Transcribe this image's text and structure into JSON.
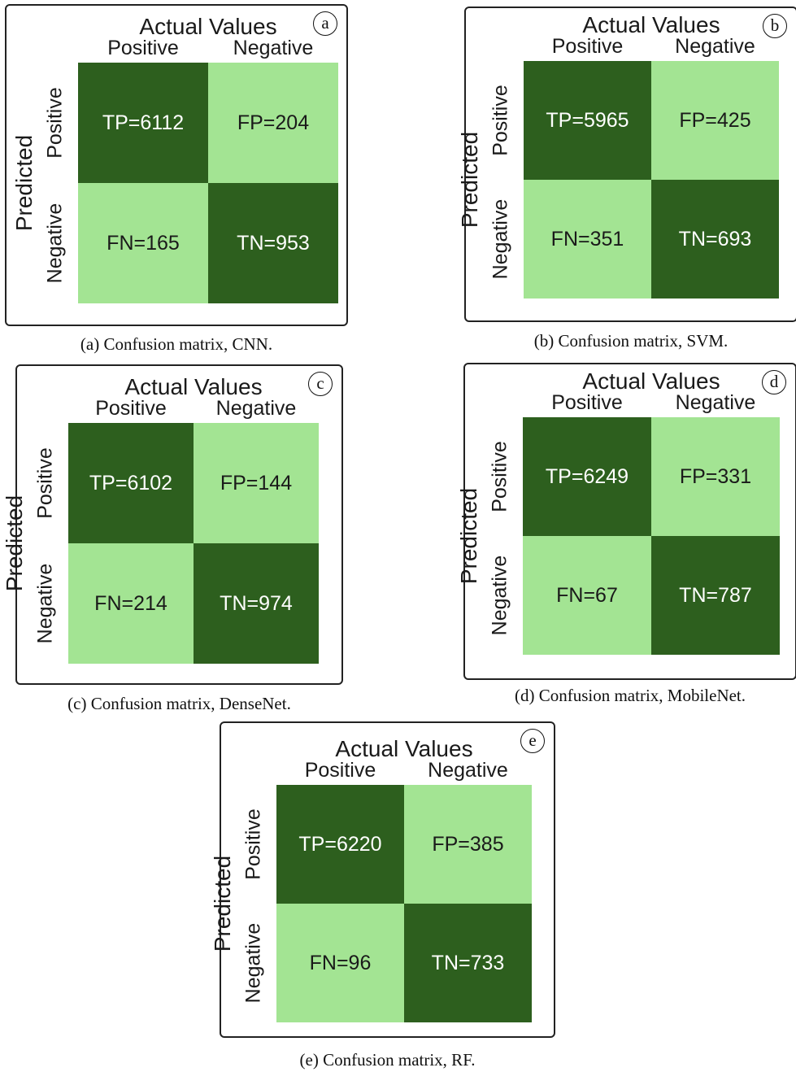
{
  "colors": {
    "dark_cell": "#2d5f1e",
    "light_cell": "#a3e493",
    "dark_text": "#ffffff",
    "light_text": "#1a1a1a"
  },
  "chart_data": [
    {
      "type": "heatmap",
      "panel_label": "a",
      "caption": "(a) Confusion matrix, CNN.",
      "title": "Actual Values",
      "ylabel": "Predicted",
      "columns": [
        "Positive",
        "Negative"
      ],
      "rows": [
        "Positive",
        "Negative"
      ],
      "cells": [
        [
          "TP=6112",
          "FP=204"
        ],
        [
          "FN=165",
          "TN=953"
        ]
      ],
      "values": [
        [
          6112,
          204
        ],
        [
          165,
          953
        ]
      ]
    },
    {
      "type": "heatmap",
      "panel_label": "b",
      "caption": "(b) Confusion matrix, SVM.",
      "title": "Actual Values",
      "ylabel": "Predicted",
      "columns": [
        "Positive",
        "Negative"
      ],
      "rows": [
        "Positive",
        "Negative"
      ],
      "cells": [
        [
          "TP=5965",
          "FP=425"
        ],
        [
          "FN=351",
          "TN=693"
        ]
      ],
      "values": [
        [
          5965,
          425
        ],
        [
          351,
          693
        ]
      ]
    },
    {
      "type": "heatmap",
      "panel_label": "c",
      "caption": "(c) Confusion matrix, DenseNet.",
      "title": "Actual Values",
      "ylabel": "Predicted",
      "columns": [
        "Positive",
        "Negative"
      ],
      "rows": [
        "Positive",
        "Negative"
      ],
      "cells": [
        [
          "TP=6102",
          "FP=144"
        ],
        [
          "FN=214",
          "TN=974"
        ]
      ],
      "values": [
        [
          6102,
          144
        ],
        [
          214,
          974
        ]
      ]
    },
    {
      "type": "heatmap",
      "panel_label": "d",
      "caption": "(d) Confusion matrix, MobileNet.",
      "title": "Actual Values",
      "ylabel": "Predicted",
      "columns": [
        "Positive",
        "Negative"
      ],
      "rows": [
        "Positive",
        "Negative"
      ],
      "cells": [
        [
          "TP=6249",
          "FP=331"
        ],
        [
          "FN=67",
          "TN=787"
        ]
      ],
      "values": [
        [
          6249,
          331
        ],
        [
          67,
          787
        ]
      ]
    },
    {
      "type": "heatmap",
      "panel_label": "e",
      "caption": "(e) Confusion matrix, RF.",
      "title": "Actual Values",
      "ylabel": "Predicted",
      "columns": [
        "Positive",
        "Negative"
      ],
      "rows": [
        "Positive",
        "Negative"
      ],
      "cells": [
        [
          "TP=6220",
          "FP=385"
        ],
        [
          "FN=96",
          "TN=733"
        ]
      ],
      "values": [
        [
          6220,
          385
        ],
        [
          96,
          733
        ]
      ]
    }
  ]
}
